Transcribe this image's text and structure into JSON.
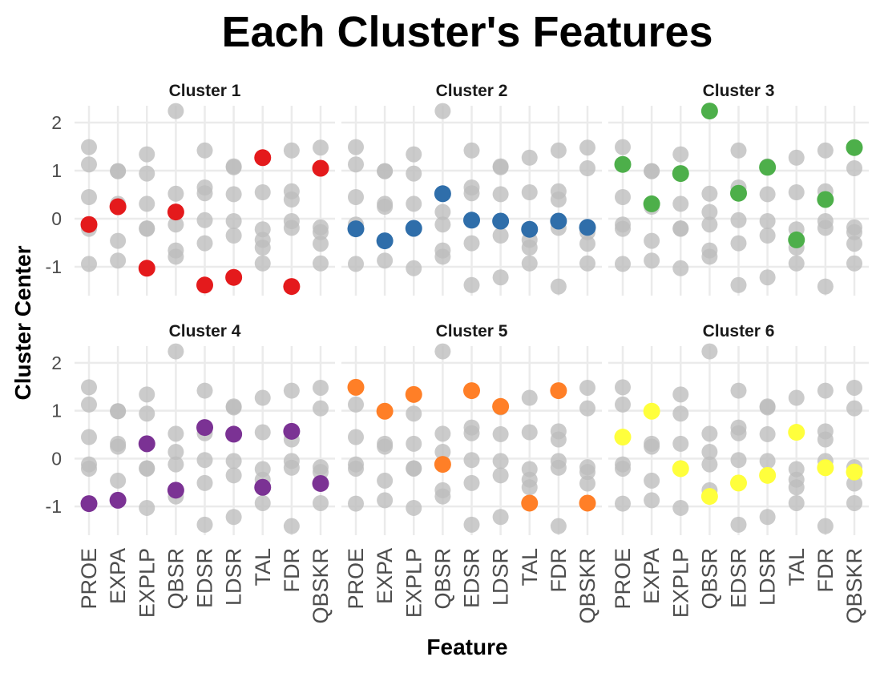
{
  "chart_data": {
    "type": "scatter",
    "title": "Each Cluster's Features",
    "xlabel": "Feature",
    "ylabel": "Cluster Center",
    "categories": [
      "PROE",
      "EXPA",
      "EXPLP",
      "QBSR",
      "EDSR",
      "LDSR",
      "TAL",
      "FDR",
      "QBSKR"
    ],
    "y_ticks": [
      2,
      1,
      0,
      -1
    ],
    "ylim": [
      -1.6,
      2.35
    ],
    "grid": true,
    "layout": "facet 2 rows x 3 columns",
    "background_color": "#bdbdbd",
    "series": [
      {
        "name": "Cluster 1",
        "color": "#e41a1c",
        "values": [
          -0.12,
          0.25,
          -1.03,
          0.14,
          -1.38,
          -1.22,
          1.27,
          -1.41,
          1.05
        ]
      },
      {
        "name": "Cluster 2",
        "color": "#2f6eaa",
        "values": [
          -0.21,
          -0.46,
          -0.2,
          0.52,
          -0.03,
          -0.05,
          -0.22,
          -0.05,
          -0.18
        ]
      },
      {
        "name": "Cluster 3",
        "color": "#4daf4a",
        "values": [
          1.13,
          0.31,
          0.94,
          2.24,
          0.53,
          1.07,
          -0.44,
          0.4,
          1.48
        ]
      },
      {
        "name": "Cluster 4",
        "color": "#7b3294",
        "values": [
          -0.94,
          -0.87,
          0.31,
          -0.66,
          0.65,
          0.51,
          -0.6,
          0.57,
          -0.52
        ]
      },
      {
        "name": "Cluster 5",
        "color": "#ff7f27",
        "values": [
          1.49,
          0.99,
          1.34,
          -0.12,
          1.42,
          1.09,
          -0.93,
          1.42,
          -0.93
        ]
      },
      {
        "name": "Cluster 6",
        "color": "#ffff3c",
        "values": [
          0.45,
          0.99,
          -0.21,
          -0.79,
          -0.51,
          -0.35,
          0.55,
          -0.19,
          -0.28
        ]
      }
    ]
  }
}
